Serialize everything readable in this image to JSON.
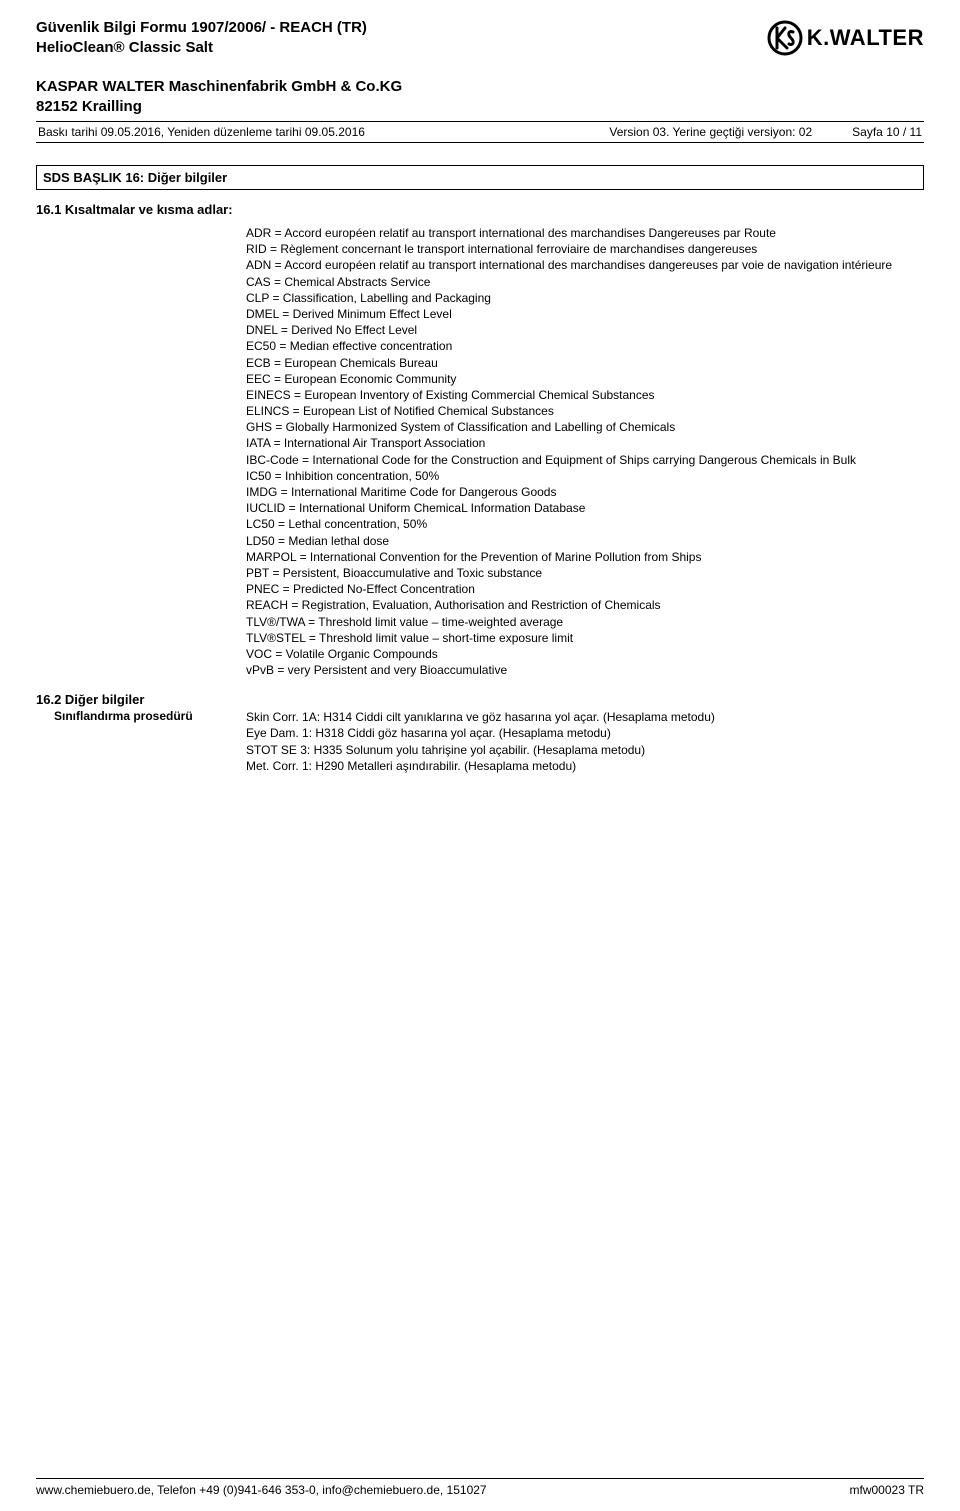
{
  "header": {
    "doc_title": "Güvenlik Bilgi Formu 1907/2006/ - REACH (TR)",
    "product": "HelioClean® Classic Salt",
    "company_line1": "KASPAR WALTER Maschinenfabrik GmbH & Co.KG",
    "company_line2": "82152 Krailling",
    "logo_text": "K.WALTER"
  },
  "meta": {
    "left": "Baskı tarihi 09.05.2016, Yeniden düzenleme tarihi 09.05.2016",
    "version": "Version 03. Yerine geçtiği versiyon: 02",
    "page": "Sayfa 10 / 11"
  },
  "section16": {
    "title": "SDS BAŞLIK 16: Diğer bilgiler",
    "sub1_title": "16.1 Kısaltmalar ve kısma adlar:",
    "abbreviations": [
      "ADR = Accord européen relatif au transport international des marchandises Dangereuses par Route",
      "RID = Règlement concernant le transport international ferroviaire de marchandises dangereuses",
      "ADN = Accord européen relatif au transport international des marchandises dangereuses par voie de navigation intérieure",
      "CAS = Chemical Abstracts Service",
      "CLP = Classification, Labelling and Packaging",
      "DMEL = Derived Minimum Effect Level",
      "DNEL = Derived No Effect Level",
      "EC50 = Median effective concentration",
      "ECB = European Chemicals Bureau",
      "EEC = European Economic Community",
      "EINECS = European Inventory of Existing Commercial Chemical Substances",
      "ELINCS = European List of Notified Chemical Substances",
      "GHS = Globally Harmonized System of Classification and Labelling of Chemicals",
      "IATA = International Air Transport Association",
      "IBC-Code = International Code for the Construction and Equipment of Ships carrying Dangerous Chemicals in Bulk",
      "IC50 = Inhibition concentration, 50%",
      "IMDG = International Maritime Code for Dangerous Goods",
      "IUCLID = International Uniform ChemicaL Information Database",
      "LC50 = Lethal concentration, 50%",
      "LD50 = Median lethal dose",
      "MARPOL = International Convention for the Prevention of Marine Pollution from Ships",
      "PBT = Persistent, Bioaccumulative and Toxic substance",
      "PNEC = Predicted No-Effect Concentration",
      "REACH = Registration, Evaluation, Authorisation and Restriction of Chemicals",
      "TLV®/TWA = Threshold limit value – time-weighted average",
      "TLV®STEL = Threshold limit value – short-time exposure limit",
      "VOC = Volatile Organic Compounds",
      "vPvB = very Persistent and very Bioaccumulative"
    ],
    "sub2_title": "16.2 Diğer bilgiler",
    "sub2_label": "Sınıflandırma prosedürü",
    "sub2_lines": [
      "Skin Corr. 1A: H314 Ciddi cilt yanıklarına ve göz hasarına yol açar. (Hesaplama metodu)",
      "Eye Dam. 1: H318 Ciddi göz hasarına yol açar. (Hesaplama metodu)",
      "STOT SE 3: H335 Solunum yolu tahrişine yol açabilir. (Hesaplama metodu)",
      "Met. Corr. 1: H290 Metalleri aşındırabilir. (Hesaplama metodu)"
    ]
  },
  "footer": {
    "left": "www.chemiebuero.de, Telefon +49 (0)941-646 353-0, info@chemiebuero.de, 151027",
    "right": "mfw00023 TR"
  }
}
